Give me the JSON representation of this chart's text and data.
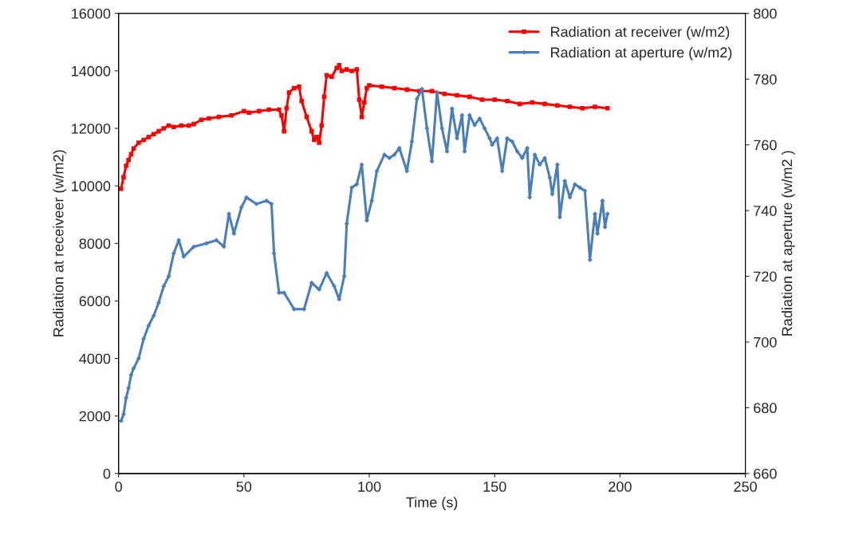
{
  "chart_data": {
    "type": "line",
    "xlabel": "Time (s)",
    "ylabel": "Radiation at receiveer (w/m2)",
    "y2label": "Radiation at aperture (w/m2 )",
    "xlim": [
      0,
      250
    ],
    "xticks": [
      0,
      50,
      100,
      150,
      200,
      250
    ],
    "ylim": [
      0,
      16000
    ],
    "yticks": [
      0,
      2000,
      4000,
      6000,
      8000,
      10000,
      12000,
      14000,
      16000
    ],
    "y2lim": [
      660,
      800
    ],
    "y2ticks": [
      660,
      680,
      700,
      720,
      740,
      760,
      780,
      800
    ],
    "grid": false,
    "legend": "top right",
    "line_style": "solid",
    "series": [
      {
        "name": "Radiation at receiver (w/m2)",
        "color": "#ff0000",
        "marker": "square",
        "x": [
          1,
          2,
          3,
          4,
          5,
          6,
          8,
          10,
          12,
          14,
          16,
          18,
          20,
          22,
          25,
          28,
          30,
          33,
          36,
          40,
          45,
          50,
          52,
          56,
          60,
          64,
          65,
          66,
          67,
          68,
          70,
          72,
          73,
          75,
          77,
          78,
          79,
          80,
          81,
          82,
          83,
          85,
          87,
          88,
          89,
          91,
          93,
          95,
          96,
          97,
          98,
          99,
          100,
          105,
          110,
          115,
          120,
          125,
          130,
          135,
          140,
          145,
          150,
          155,
          160,
          165,
          170,
          175,
          180,
          185,
          190,
          195
        ],
        "values": [
          9900,
          10300,
          10700,
          10900,
          11100,
          11300,
          11500,
          11600,
          11700,
          11800,
          11900,
          12000,
          12100,
          12050,
          12100,
          12100,
          12150,
          12300,
          12350,
          12400,
          12450,
          12600,
          12550,
          12600,
          12650,
          12650,
          12450,
          11900,
          12700,
          13250,
          13400,
          13450,
          12950,
          12400,
          11900,
          11600,
          11700,
          11500,
          12100,
          13100,
          13850,
          13800,
          14100,
          14200,
          14000,
          14050,
          14000,
          14050,
          13000,
          12400,
          12900,
          13400,
          13500,
          13450,
          13400,
          13350,
          13300,
          13300,
          13200,
          13150,
          13100,
          13000,
          13000,
          12950,
          12850,
          12900,
          12850,
          12800,
          12750,
          12700,
          12750,
          12700
        ]
      },
      {
        "name": "Radiation at aperture (w/m2)",
        "color": "#4a7ebb",
        "marker": "diamond",
        "axis": "y2",
        "x": [
          1,
          2,
          3,
          4,
          5,
          6,
          8,
          10,
          12,
          14,
          16,
          18,
          20,
          22,
          24,
          26,
          30,
          35,
          39,
          42,
          44,
          46,
          49,
          51,
          55,
          59,
          61,
          62,
          64,
          66,
          70,
          74,
          77,
          80,
          83,
          86,
          88,
          90,
          91,
          93,
          95,
          97,
          99,
          101,
          103,
          106,
          108,
          110,
          112,
          115,
          117,
          119,
          121,
          123,
          125,
          127,
          129,
          131,
          133,
          135,
          137,
          138,
          140,
          142,
          144,
          146,
          148,
          149,
          151,
          153,
          155,
          157,
          159,
          161,
          163,
          164,
          166,
          168,
          170,
          172,
          173,
          175,
          176,
          178,
          180,
          182,
          184,
          186,
          188,
          190,
          191,
          193,
          194,
          195
        ],
        "values": [
          676,
          678,
          683,
          686,
          690,
          692,
          695,
          701,
          705,
          708,
          712,
          717,
          720,
          727,
          731,
          726,
          729,
          730,
          731,
          729,
          739,
          733,
          741,
          744,
          742,
          743,
          742,
          727,
          715,
          715,
          710,
          710,
          718,
          716,
          721,
          717,
          713,
          720,
          736,
          747,
          748,
          754,
          737,
          743,
          752,
          757,
          756,
          757,
          759,
          752,
          761,
          774,
          777,
          765,
          755,
          776,
          765,
          758,
          771,
          762,
          769,
          758,
          769,
          766,
          768,
          765,
          762,
          760,
          762,
          752,
          762,
          761,
          758,
          756,
          759,
          744,
          757,
          754,
          756,
          750,
          745,
          754,
          738,
          749,
          744,
          748,
          747,
          746,
          725,
          739,
          733,
          743,
          735,
          739
        ]
      }
    ]
  }
}
